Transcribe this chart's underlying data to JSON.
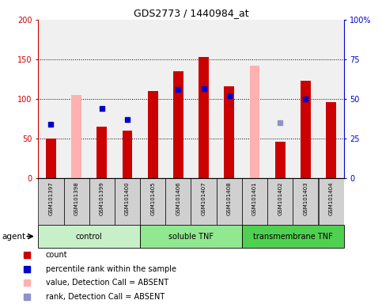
{
  "title": "GDS2773 / 1440984_at",
  "samples": [
    "GSM101397",
    "GSM101398",
    "GSM101399",
    "GSM101400",
    "GSM101405",
    "GSM101406",
    "GSM101407",
    "GSM101408",
    "GSM101401",
    "GSM101402",
    "GSM101403",
    "GSM101404"
  ],
  "groups": [
    {
      "label": "control",
      "start": 0,
      "end": 4,
      "color": "#c8f0c8"
    },
    {
      "label": "soluble TNF",
      "start": 4,
      "end": 8,
      "color": "#90e890"
    },
    {
      "label": "transmembrane TNF",
      "start": 8,
      "end": 12,
      "color": "#50d050"
    }
  ],
  "red_bars": [
    50,
    0,
    65,
    60,
    110,
    135,
    153,
    116,
    0,
    46,
    123,
    96
  ],
  "pink_bars": [
    0,
    105,
    0,
    0,
    0,
    0,
    0,
    0,
    142,
    0,
    0,
    0
  ],
  "blue_squares": [
    68,
    0,
    88,
    74,
    0,
    112,
    113,
    104,
    0,
    0,
    100,
    0
  ],
  "lavender_squares": [
    0,
    0,
    0,
    0,
    0,
    0,
    0,
    0,
    0,
    70,
    0,
    0
  ],
  "absent_red": [
    false,
    true,
    false,
    false,
    false,
    false,
    false,
    false,
    true,
    false,
    false,
    false
  ],
  "absent_blue": [
    false,
    false,
    false,
    false,
    false,
    false,
    false,
    false,
    false,
    true,
    false,
    false
  ],
  "ylim_left": [
    0,
    200
  ],
  "ylim_right": [
    0,
    100
  ],
  "yticks_left": [
    0,
    50,
    100,
    150,
    200
  ],
  "yticks_right": [
    0,
    25,
    50,
    75,
    100
  ],
  "ytick_labels_left": [
    "0",
    "50",
    "100",
    "150",
    "200"
  ],
  "ytick_labels_right": [
    "0",
    "25",
    "50",
    "75",
    "100%"
  ],
  "left_axis_color": "#cc0000",
  "right_axis_color": "#0000cc",
  "bar_width": 0.4,
  "red_bar_color": "#cc0000",
  "pink_bar_color": "#ffb0b0",
  "blue_sq_color": "#0000cc",
  "lavender_sq_color": "#9090cc",
  "bg_plot": "#f0f0f0",
  "bg_sample": "#d0d0d0",
  "legend_labels": [
    "count",
    "percentile rank within the sample",
    "value, Detection Call = ABSENT",
    "rank, Detection Call = ABSENT"
  ],
  "legend_colors": [
    "#cc0000",
    "#0000cc",
    "#ffb0b0",
    "#9090cc"
  ],
  "agent_label": "agent"
}
